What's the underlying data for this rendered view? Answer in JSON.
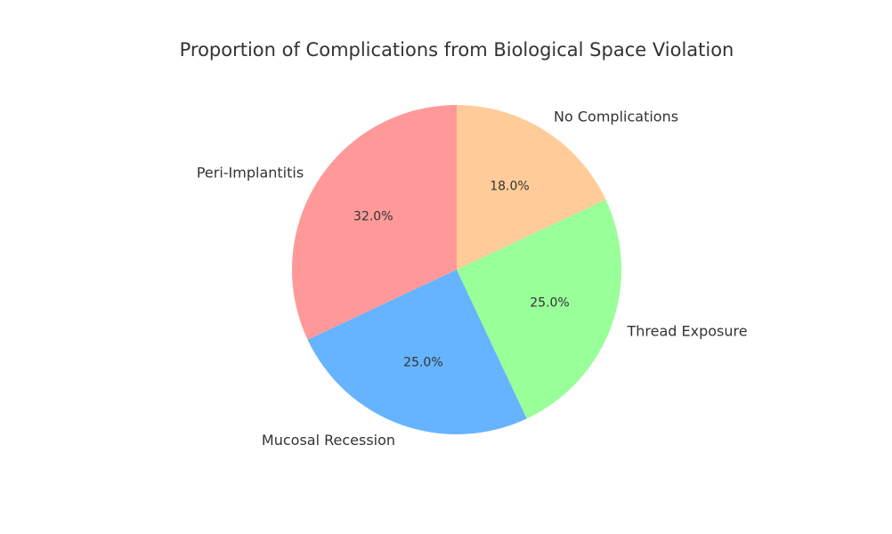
{
  "chart_data": {
    "type": "pie",
    "title": "Proportion of Complications from Biological Space Violation",
    "start_angle_deg": 90,
    "direction": "counterclockwise",
    "slices": [
      {
        "label": "Peri-Implantitis",
        "value": 32,
        "pct_label": "32.0%",
        "color": "#ff9999"
      },
      {
        "label": "Mucosal Recession",
        "value": 25,
        "pct_label": "25.0%",
        "color": "#66b3ff"
      },
      {
        "label": "Thread Exposure",
        "value": 25,
        "pct_label": "25.0%",
        "color": "#99ff99"
      },
      {
        "label": "No Complications",
        "value": 18,
        "pct_label": "18.0%",
        "color": "#ffcc99"
      }
    ]
  }
}
